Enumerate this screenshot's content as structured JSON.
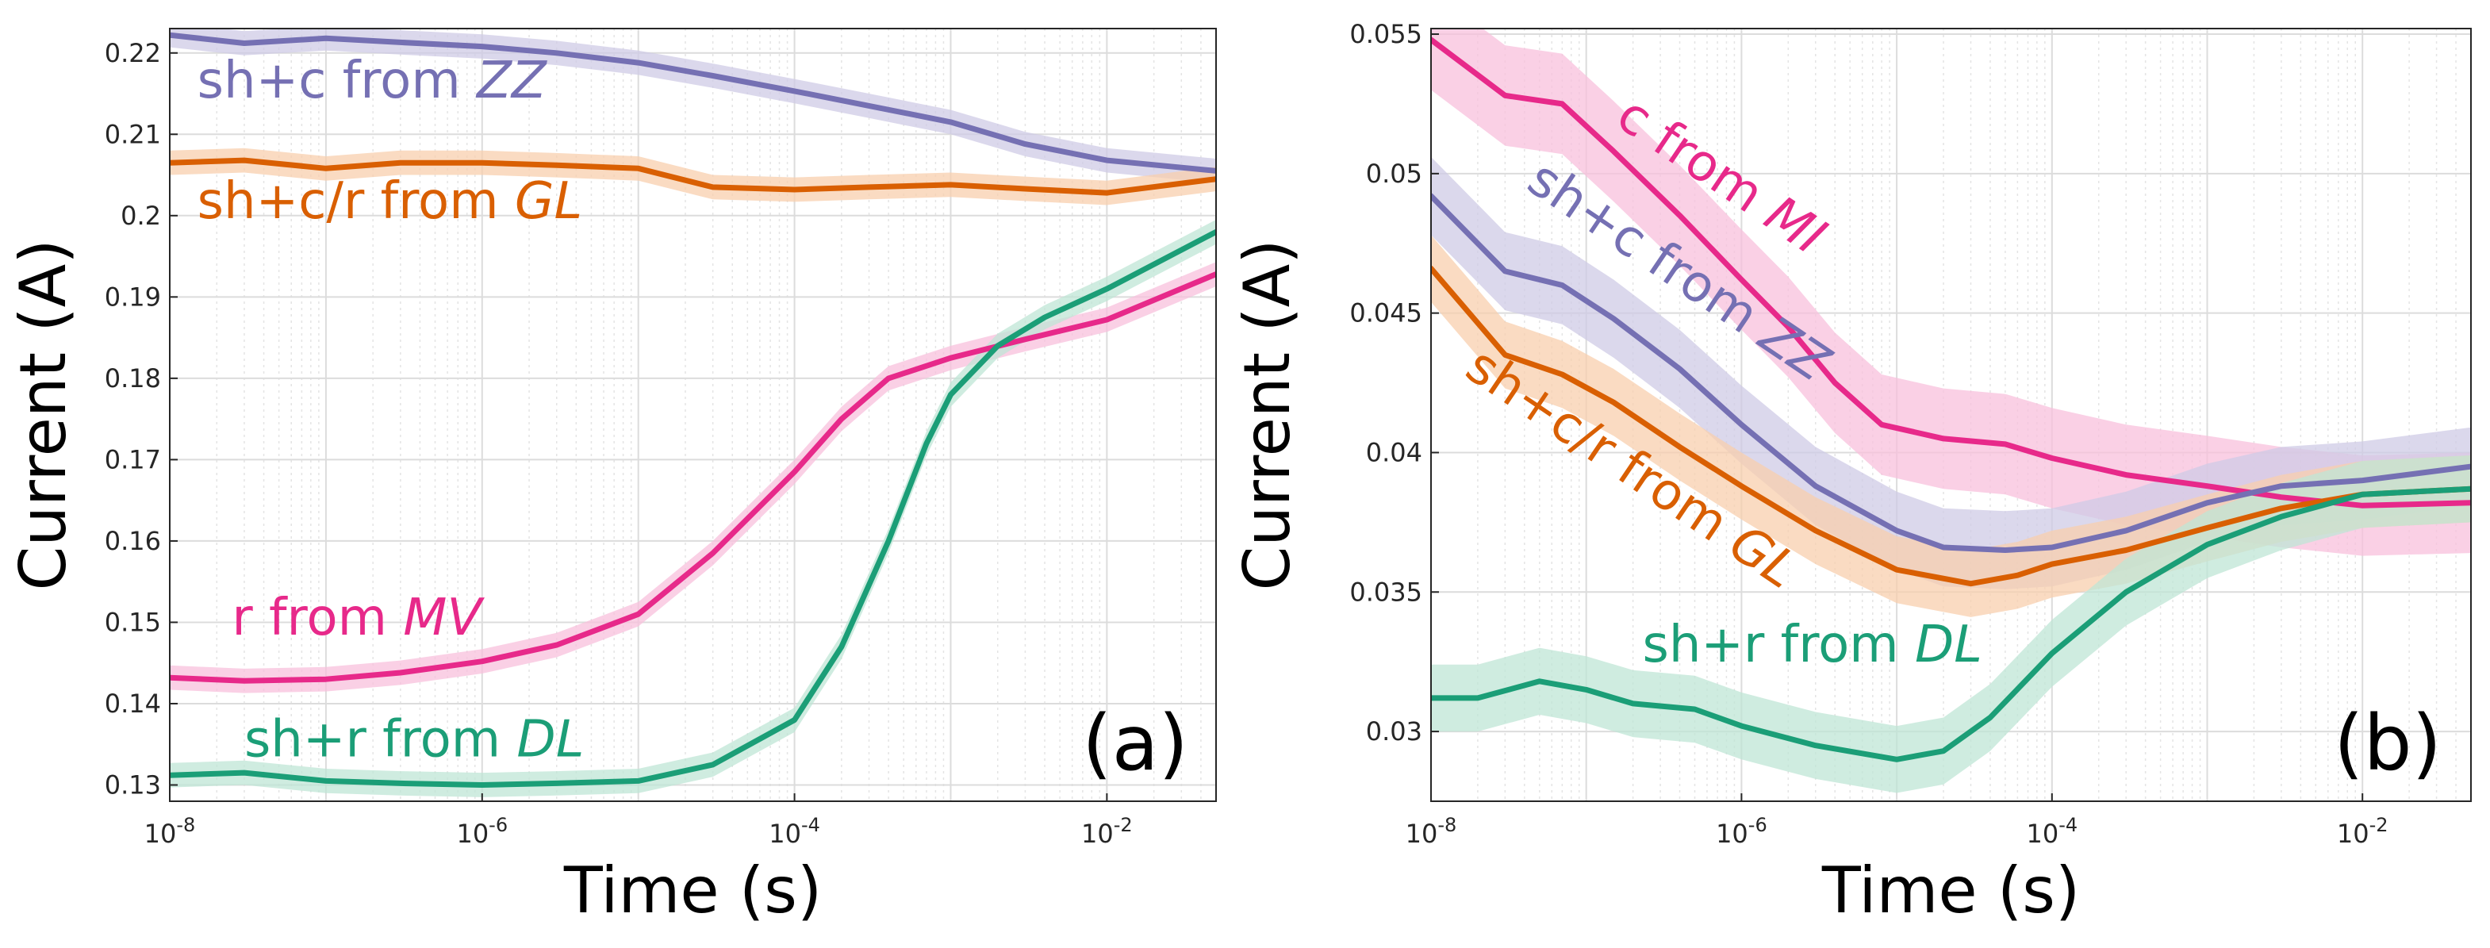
{
  "chart_data": [
    {
      "type": "line",
      "panel": "(a)",
      "xlabel": "Time (s)",
      "ylabel": "Current (A)",
      "xscale": "log",
      "xlim": [
        1e-08,
        0.05
      ],
      "ylim": [
        0.128,
        0.223
      ],
      "grid": true,
      "xticks": [
        {
          "value": 1e-08,
          "base": "10",
          "exp": "-8"
        },
        {
          "value": 1e-06,
          "base": "10",
          "exp": "-6"
        },
        {
          "value": 0.0001,
          "base": "10",
          "exp": "-4"
        },
        {
          "value": 0.01,
          "base": "10",
          "exp": "-2"
        }
      ],
      "yticks": [
        {
          "value": 0.13,
          "label": "0.13"
        },
        {
          "value": 0.14,
          "label": "0.14"
        },
        {
          "value": 0.15,
          "label": "0.15"
        },
        {
          "value": 0.16,
          "label": "0.16"
        },
        {
          "value": 0.17,
          "label": "0.17"
        },
        {
          "value": 0.18,
          "label": "0.18"
        },
        {
          "value": 0.19,
          "label": "0.19"
        },
        {
          "value": 0.2,
          "label": "0.2"
        },
        {
          "value": 0.21,
          "label": "0.21"
        },
        {
          "value": 0.22,
          "label": "0.22"
        }
      ],
      "series": [
        {
          "label_plain": "sh+c from ",
          "label_italic": "ZZ",
          "color": "#7570b3",
          "band_color": "#cfcbe6",
          "band": 0.0015,
          "label_x": 1.5e-08,
          "label_y": 0.2145,
          "points": [
            [
              1e-08,
              0.2222
            ],
            [
              3e-08,
              0.2212
            ],
            [
              1e-07,
              0.2218
            ],
            [
              3e-07,
              0.2213
            ],
            [
              1e-06,
              0.2208
            ],
            [
              3e-06,
              0.22
            ],
            [
              1e-05,
              0.2188
            ],
            [
              3e-05,
              0.2172
            ],
            [
              0.0001,
              0.2153
            ],
            [
              0.0003,
              0.2135
            ],
            [
              0.001,
              0.2115
            ],
            [
              0.003,
              0.2088
            ],
            [
              0.01,
              0.2068
            ],
            [
              0.05,
              0.2055
            ]
          ]
        },
        {
          "label_plain": "sh+c/r from ",
          "label_italic": "GL",
          "color": "#d95f02",
          "band_color": "#f8cfae",
          "band": 0.0015,
          "label_x": 1.5e-08,
          "label_y": 0.1997,
          "points": [
            [
              1e-08,
              0.2065
            ],
            [
              3e-08,
              0.2068
            ],
            [
              1e-07,
              0.2058
            ],
            [
              3e-07,
              0.2065
            ],
            [
              1e-06,
              0.2065
            ],
            [
              3e-06,
              0.2062
            ],
            [
              1e-05,
              0.2058
            ],
            [
              3e-05,
              0.2035
            ],
            [
              0.0001,
              0.2032
            ],
            [
              0.0003,
              0.2035
            ],
            [
              0.001,
              0.2038
            ],
            [
              0.003,
              0.2033
            ],
            [
              0.01,
              0.2028
            ],
            [
              0.05,
              0.2045
            ]
          ]
        },
        {
          "label_plain": "r from ",
          "label_italic": "MV",
          "color": "#e7298a",
          "band_color": "#f8c0dc",
          "band": 0.0015,
          "label_x": 2.5e-08,
          "label_y": 0.1485,
          "points": [
            [
              1e-08,
              0.1432
            ],
            [
              3e-08,
              0.1428
            ],
            [
              1e-07,
              0.143
            ],
            [
              3e-07,
              0.1438
            ],
            [
              1e-06,
              0.1452
            ],
            [
              3e-06,
              0.1472
            ],
            [
              1e-05,
              0.151
            ],
            [
              3e-05,
              0.1585
            ],
            [
              0.0001,
              0.1685
            ],
            [
              0.0002,
              0.175
            ],
            [
              0.0004,
              0.18
            ],
            [
              0.001,
              0.1825
            ],
            [
              0.003,
              0.1848
            ],
            [
              0.01,
              0.1872
            ],
            [
              0.05,
              0.1928
            ]
          ]
        },
        {
          "label_plain": "sh+r from ",
          "label_italic": "DL",
          "color": "#1b9e77",
          "band_color": "#bfe6d6",
          "band": 0.0015,
          "label_x": 3e-08,
          "label_y": 0.1335,
          "points": [
            [
              1e-08,
              0.1312
            ],
            [
              3e-08,
              0.1315
            ],
            [
              1e-07,
              0.1305
            ],
            [
              3e-07,
              0.1302
            ],
            [
              1e-06,
              0.13
            ],
            [
              3e-06,
              0.1302
            ],
            [
              1e-05,
              0.1305
            ],
            [
              3e-05,
              0.1325
            ],
            [
              0.0001,
              0.138
            ],
            [
              0.0002,
              0.147
            ],
            [
              0.0004,
              0.16
            ],
            [
              0.0007,
              0.172
            ],
            [
              0.001,
              0.178
            ],
            [
              0.002,
              0.184
            ],
            [
              0.004,
              0.1875
            ],
            [
              0.01,
              0.191
            ],
            [
              0.05,
              0.198
            ]
          ]
        }
      ]
    },
    {
      "type": "line",
      "panel": "(b)",
      "xlabel": "Time (s)",
      "ylabel": "Current (A)",
      "xscale": "log",
      "xlim": [
        1e-08,
        0.05
      ],
      "ylim": [
        0.0275,
        0.0552
      ],
      "grid": true,
      "xticks": [
        {
          "value": 1e-08,
          "base": "10",
          "exp": "-8"
        },
        {
          "value": 1e-06,
          "base": "10",
          "exp": "-6"
        },
        {
          "value": 0.0001,
          "base": "10",
          "exp": "-4"
        },
        {
          "value": 0.01,
          "base": "10",
          "exp": "-2"
        }
      ],
      "yticks": [
        {
          "value": 0.03,
          "label": "0.03"
        },
        {
          "value": 0.035,
          "label": "0.035"
        },
        {
          "value": 0.04,
          "label": "0.04"
        },
        {
          "value": 0.045,
          "label": "0.045"
        },
        {
          "value": 0.05,
          "label": "0.05"
        },
        {
          "value": 0.055,
          "label": "0.055"
        }
      ],
      "series": [
        {
          "label_plain": "c from ",
          "label_italic": "MI",
          "color": "#e7298a",
          "band_color": "#f8c0dc",
          "band": 0.0018,
          "label_x": 1.5e-07,
          "label_y": 0.0518,
          "label_angle": 34,
          "points": [
            [
              1e-08,
              0.0548
            ],
            [
              3e-08,
              0.0528
            ],
            [
              7e-08,
              0.0525
            ],
            [
              1.5e-07,
              0.0508
            ],
            [
              4e-07,
              0.0485
            ],
            [
              1e-06,
              0.0462
            ],
            [
              2e-06,
              0.0445
            ],
            [
              4e-06,
              0.0425
            ],
            [
              8e-06,
              0.041
            ],
            [
              2e-05,
              0.0405
            ],
            [
              5e-05,
              0.0403
            ],
            [
              0.0001,
              0.0398
            ],
            [
              0.0003,
              0.0392
            ],
            [
              0.001,
              0.0388
            ],
            [
              0.003,
              0.0384
            ],
            [
              0.01,
              0.0381
            ],
            [
              0.05,
              0.0382
            ]
          ]
        },
        {
          "label_plain": "sh+c from ",
          "label_italic": "ZZ",
          "color": "#7570b3",
          "band_color": "#cfcbe6",
          "band": 0.0014,
          "label_x": 4e-08,
          "label_y": 0.0495,
          "label_angle": 34,
          "points": [
            [
              1e-08,
              0.0492
            ],
            [
              3e-08,
              0.0465
            ],
            [
              7e-08,
              0.046
            ],
            [
              1.5e-07,
              0.0448
            ],
            [
              4e-07,
              0.043
            ],
            [
              1e-06,
              0.041
            ],
            [
              3e-06,
              0.0388
            ],
            [
              1e-05,
              0.0372
            ],
            [
              2e-05,
              0.0366
            ],
            [
              5e-05,
              0.0365
            ],
            [
              0.0001,
              0.0366
            ],
            [
              0.0003,
              0.0372
            ],
            [
              0.001,
              0.0382
            ],
            [
              0.003,
              0.0388
            ],
            [
              0.01,
              0.039
            ],
            [
              0.05,
              0.0395
            ]
          ]
        },
        {
          "label_plain": "sh+c/r from ",
          "label_italic": "GL",
          "color": "#d95f02",
          "band_color": "#f8cfae",
          "band": 0.0012,
          "label_x": 1.6e-08,
          "label_y": 0.0428,
          "label_angle": 34,
          "points": [
            [
              1e-08,
              0.0466
            ],
            [
              3e-08,
              0.0435
            ],
            [
              7e-08,
              0.0428
            ],
            [
              1.5e-07,
              0.0418
            ],
            [
              4e-07,
              0.0402
            ],
            [
              1e-06,
              0.0388
            ],
            [
              3e-06,
              0.0372
            ],
            [
              1e-05,
              0.0358
            ],
            [
              3e-05,
              0.0353
            ],
            [
              6e-05,
              0.0356
            ],
            [
              0.0001,
              0.036
            ],
            [
              0.0003,
              0.0365
            ],
            [
              0.001,
              0.0373
            ],
            [
              0.003,
              0.038
            ],
            [
              0.01,
              0.0385
            ],
            [
              0.05,
              0.0387
            ]
          ]
        },
        {
          "label_plain": "sh+r from ",
          "label_italic": "DL",
          "color": "#1b9e77",
          "band_color": "#bfe6d6",
          "band": 0.0012,
          "label_x": 2.3e-07,
          "label_y": 0.0325,
          "points": [
            [
              1e-08,
              0.0312
            ],
            [
              2e-08,
              0.0312
            ],
            [
              5e-08,
              0.0318
            ],
            [
              1e-07,
              0.0315
            ],
            [
              2e-07,
              0.031
            ],
            [
              5e-07,
              0.0308
            ],
            [
              1e-06,
              0.0302
            ],
            [
              3e-06,
              0.0295
            ],
            [
              1e-05,
              0.029
            ],
            [
              2e-05,
              0.0293
            ],
            [
              4e-05,
              0.0305
            ],
            [
              0.0001,
              0.0328
            ],
            [
              0.0003,
              0.035
            ],
            [
              0.001,
              0.0367
            ],
            [
              0.003,
              0.0377
            ],
            [
              0.01,
              0.0385
            ],
            [
              0.05,
              0.0387
            ]
          ]
        }
      ]
    }
  ]
}
